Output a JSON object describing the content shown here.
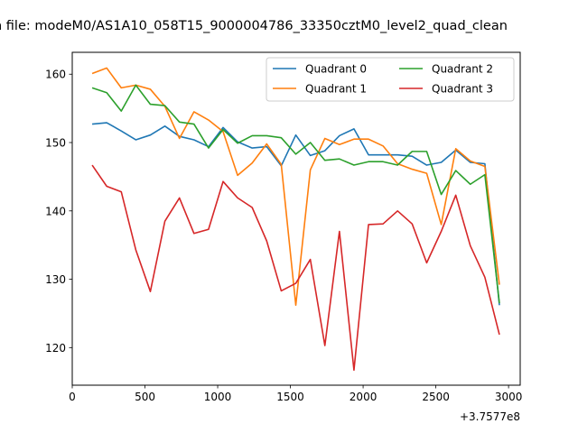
{
  "chart_data": {
    "type": "line",
    "title": "n file: modeM0/AS1A10_058T15_9000004786_33350cztM0_level2_quad_clean",
    "xlabel": "",
    "ylabel": "",
    "x_offset_label": "+3.7577e8",
    "xlim": [
      0,
      3080
    ],
    "ylim": [
      114.5,
      163.2
    ],
    "xticks": [
      0,
      500,
      1000,
      1500,
      2000,
      2500,
      3000
    ],
    "yticks": [
      120,
      130,
      140,
      150,
      160
    ],
    "grid": false,
    "legend_position": "upper-right",
    "x": [
      137,
      237,
      337,
      437,
      537,
      637,
      737,
      837,
      937,
      1037,
      1137,
      1237,
      1337,
      1437,
      1537,
      1637,
      1737,
      1837,
      1937,
      2037,
      2137,
      2237,
      2337,
      2437,
      2537,
      2637,
      2737,
      2837,
      2937
    ],
    "series": [
      {
        "name": "Quadrant 0",
        "color": "#1f77b4",
        "values": [
          152.7,
          152.9,
          151.7,
          150.4,
          151.1,
          152.4,
          150.9,
          150.4,
          149.4,
          152.2,
          150.1,
          149.2,
          149.4,
          146.6,
          151.1,
          148.1,
          148.8,
          151.0,
          152.0,
          148.2,
          148.2,
          148.2,
          148.0,
          146.7,
          147.1,
          148.9,
          147.1,
          146.9,
          126.2
        ]
      },
      {
        "name": "Quadrant 1",
        "color": "#ff7f0e",
        "values": [
          160.1,
          160.9,
          158.0,
          158.4,
          157.8,
          155.3,
          150.6,
          154.5,
          153.3,
          151.6,
          145.2,
          147.0,
          149.8,
          146.8,
          126.2,
          146.0,
          150.6,
          149.7,
          150.5,
          150.5,
          149.5,
          146.9,
          146.1,
          145.5,
          138.0,
          149.1,
          147.3,
          146.5,
          129.2
        ]
      },
      {
        "name": "Quadrant 2",
        "color": "#2ca02c",
        "values": [
          158.0,
          157.3,
          154.6,
          158.4,
          155.6,
          155.4,
          153.0,
          152.7,
          149.2,
          151.9,
          149.9,
          151.0,
          151.0,
          150.7,
          148.3,
          150.0,
          147.4,
          147.6,
          146.7,
          147.2,
          147.2,
          146.7,
          148.7,
          148.7,
          142.4,
          145.9,
          143.9,
          145.3,
          126.5
        ]
      },
      {
        "name": "Quadrant 3",
        "color": "#d62728",
        "values": [
          146.7,
          143.6,
          142.8,
          134.3,
          128.2,
          138.5,
          141.9,
          136.7,
          137.3,
          144.3,
          141.9,
          140.5,
          135.6,
          128.3,
          129.4,
          132.9,
          120.3,
          137.0,
          116.7,
          138.0,
          138.1,
          140.0,
          138.1,
          132.4,
          137.0,
          142.3,
          134.9,
          130.3,
          121.9
        ]
      }
    ]
  }
}
